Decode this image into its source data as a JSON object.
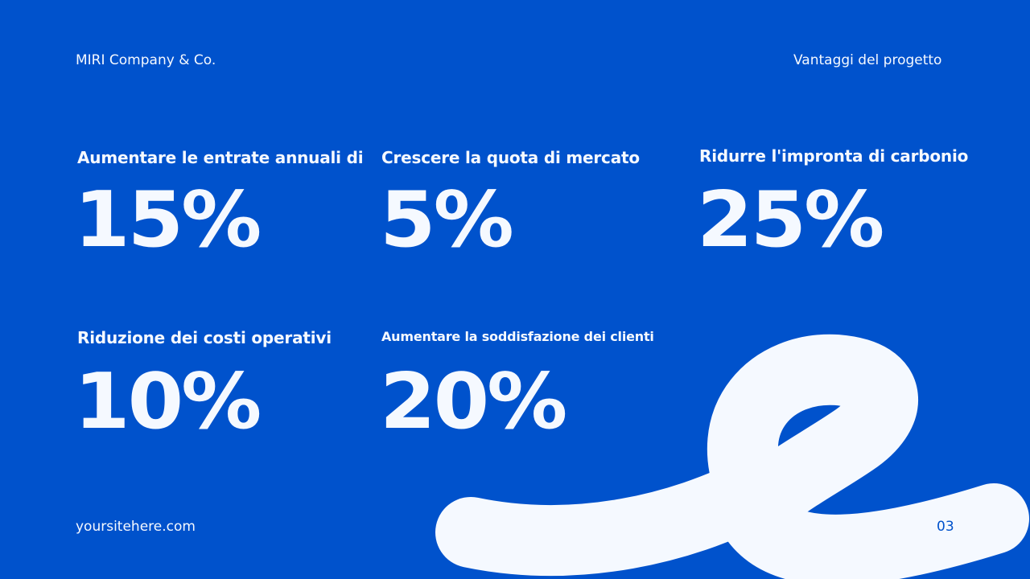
{
  "header": {
    "company": "MIRI Company & Co.",
    "section": "Vantaggi del progetto"
  },
  "stats": [
    {
      "label": "Aumentare le entrate annuali di",
      "value": "15%"
    },
    {
      "label": "Crescere la quota di mercato",
      "value": "5%"
    },
    {
      "label": "Ridurre l'impronta di carbonio",
      "value": "25%"
    },
    {
      "label": "Riduzione dei costi operativi",
      "value": "10%"
    },
    {
      "label": "Aumentare la soddisfazione dei clienti",
      "value": "20%"
    }
  ],
  "footer": {
    "website": "yoursitehere.com",
    "page_number": "03"
  },
  "colors": {
    "background": "#0052CC",
    "foreground": "#F5F9FF"
  }
}
